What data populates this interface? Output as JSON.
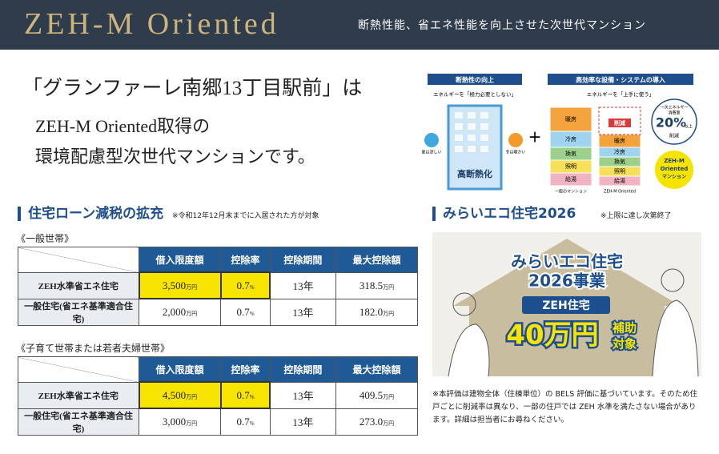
{
  "header": {
    "title": "ZEH-M Oriented",
    "subtitle": "断熱性能、省エネ性能を向上させた次世代マンション"
  },
  "intro": {
    "lines": [
      "「グランファーレ南郷13丁目駅前」は",
      "ZEH-M Oriented取得の",
      "環境配慮型次世代マンションです。"
    ]
  },
  "diagram": {
    "left": {
      "title": "断熱性の向上",
      "caption": "エネルギーを「極力必要としない」",
      "icons": [
        "夏は涼しい",
        "冬は暖かい"
      ],
      "label": "高断熱化"
    },
    "plus": "+",
    "right": {
      "title": "高効率な設備・システムの導入",
      "caption": "エネルギーを「上手に使う」",
      "uses": [
        "暖房",
        "冷房",
        "換気",
        "照明",
        "給湯"
      ],
      "reduction": "削減",
      "bars": [
        "一般のマンション",
        "ZEH-M Oriented"
      ],
      "badge": {
        "top": "一次エネルギー",
        "top2": "消費量",
        "value": "20%",
        "suffix": "以上",
        "bottom": "削減"
      },
      "result": [
        "ZEH-M",
        "Oriented",
        "マンション"
      ]
    }
  },
  "tax": {
    "title": "住宅ローン減税の拡充",
    "note": "※令和12年12月末までに入居された方が対象",
    "columns": [
      "借入限度額",
      "控除率",
      "控除期間",
      "最大控除額"
    ],
    "tables": [
      {
        "label": "《一般世帯》",
        "rows": [
          {
            "type": "ZEH水準省エネ住宅",
            "cells": [
              {
                "amount": "3,500",
                "unit": "万円"
              },
              {
                "amount": "0.7",
                "unit": "%"
              },
              {
                "amount": "13年"
              },
              {
                "amount": "318.5",
                "unit": "万円"
              }
            ]
          },
          {
            "type": "一般住宅(省エネ基準適合住宅)",
            "cells": [
              {
                "amount": "2,000",
                "unit": "万円"
              },
              {
                "amount": "0.7",
                "unit": "%"
              },
              {
                "amount": "13年"
              },
              {
                "amount": "182.0",
                "unit": "万円"
              }
            ]
          }
        ]
      },
      {
        "label": "《子育て世帯または若者夫婦世帯》",
        "rows": [
          {
            "type": "ZEH水準省エネ住宅",
            "cells": [
              {
                "amount": "4,500",
                "unit": "万円"
              },
              {
                "amount": "0.7",
                "unit": "%"
              },
              {
                "amount": "13年"
              },
              {
                "amount": "409.5",
                "unit": "万円"
              }
            ]
          },
          {
            "type": "一般住宅(省エネ基準適合住宅)",
            "cells": [
              {
                "amount": "3,000",
                "unit": "万円"
              },
              {
                "amount": "0.7",
                "unit": "%"
              },
              {
                "amount": "13年"
              },
              {
                "amount": "273.0",
                "unit": "万円"
              }
            ]
          }
        ]
      }
    ]
  },
  "eco": {
    "title": "みらいエコ住宅2026",
    "note": "※上限に達し次第終了",
    "banner": {
      "line1": "みらいエコ住宅",
      "line2": "2026事業",
      "tag": "ZEH住宅",
      "amount": "40万円",
      "suffix": [
        "補助",
        "対象"
      ]
    },
    "footnote": "※本評価は建物全体（住棟単位）の BELS 評価に基づいています。そのため住戸ごとに削減率は異なり、一部の住戸では ZEH 水準を満たさない場合があります。詳細は担当者にお尋ねください。"
  }
}
